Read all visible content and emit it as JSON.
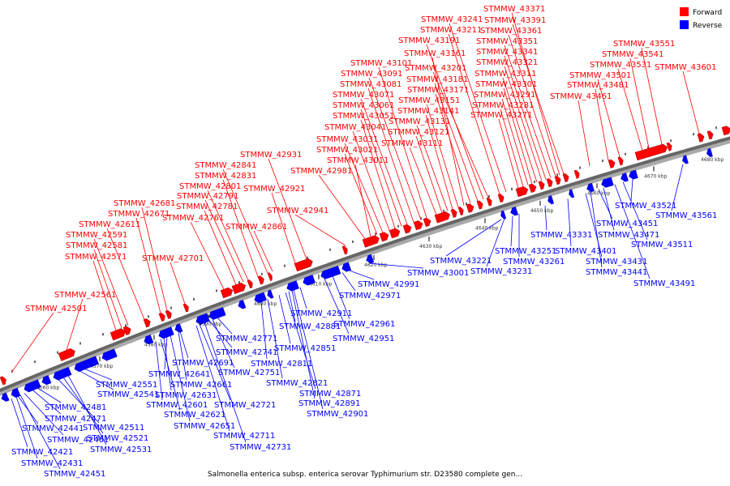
{
  "legend": [
    {
      "label": "Forward",
      "color": "#ff0000"
    },
    {
      "label": "Reverse",
      "color": "#0000ff"
    }
  ],
  "caption": "Salmonella enterica subsp. enterica serovar Typhimurium str. D23580 complete gen...",
  "ticks": [
    "4560 kbp",
    "4570 kbp",
    "4580 kbp",
    "4590 kbp",
    "4600 kbp",
    "4610 kbp",
    "4620 kbp",
    "4630 kbp",
    "4640 kbp",
    "4650 kbp",
    "4660 kbp",
    "4670 kbp",
    "4680 kbp"
  ],
  "forward_labels": [
    "STMMW_42501",
    "STMMW_42561",
    "STMMW_42571",
    "STMMW_42581",
    "STMMW_42591",
    "STMMW_42611",
    "STMMW_42671",
    "STMMW_42681",
    "STMMW_42701",
    "STMMW_42761",
    "STMMW_42781",
    "STMMW_42791",
    "STMMW_42801",
    "STMMW_42831",
    "STMMW_42841",
    "STMMW_42861",
    "STMMW_42921",
    "STMMW_42931",
    "STMMW_42941",
    "STMMW_42981",
    "STMMW_43011",
    "STMMW_43021",
    "STMMW_43031",
    "STMMW_43041",
    "STMMW_43051",
    "STMMW_43061",
    "STMMW_43071",
    "STMMW_43081",
    "STMMW_43091",
    "STMMW_43101",
    "STMMW_43111",
    "STMMW_43121",
    "STMMW_43131",
    "STMMW_43141",
    "STMMW_43151",
    "STMMW_43161",
    "STMMW_43171",
    "STMMW_43181",
    "STMMW_43191",
    "STMMW_43201",
    "STMMW_43211",
    "STMMW_43241",
    "STMMW_43271",
    "STMMW_43281",
    "STMMW_43291",
    "STMMW_43301",
    "STMMW_43311",
    "STMMW_43321",
    "STMMW_43341",
    "STMMW_43351",
    "STMMW_43361",
    "STMMW_43371",
    "STMMW_43391",
    "STMMW_43461",
    "STMMW_43481",
    "STMMW_43501",
    "STMMW_43531",
    "STMMW_43541",
    "STMMW_43551",
    "STMMW_43601"
  ],
  "reverse_labels": [
    "STMMW_42421",
    "STMMW_42431",
    "STMMW_42441",
    "STMMW_42451",
    "STMMW_42461",
    "STMMW_42471",
    "STMMW_42481",
    "STMMW_42511",
    "STMMW_42521",
    "STMMW_42531",
    "STMMW_42541",
    "STMMW_42551",
    "STMMW_42601",
    "STMMW_42621",
    "STMMW_42631",
    "STMMW_42641",
    "STMMW_42651",
    "STMMW_42661",
    "STMMW_42691",
    "STMMW_42711",
    "STMMW_42721",
    "STMMW_42731",
    "STMMW_42741",
    "STMMW_42751",
    "STMMW_42771",
    "STMMW_42811",
    "STMMW_42821",
    "STMMW_42851",
    "STMMW_42871",
    "STMMW_42881",
    "STMMW_42891",
    "STMMW_42901",
    "STMMW_42911",
    "STMMW_42951",
    "STMMW_42961",
    "STMMW_42971",
    "STMMW_42991",
    "STMMW_43001",
    "STMMW_43221",
    "STMMW_43231",
    "STMMW_43251",
    "STMMW_43261",
    "STMMW_43331",
    "STMMW_43401",
    "STMMW_43431",
    "STMMW_43441",
    "STMMW_43451",
    "STMMW_43471",
    "STMMW_43491",
    "STMMW_43511",
    "STMMW_43521",
    "STMMW_43561"
  ]
}
